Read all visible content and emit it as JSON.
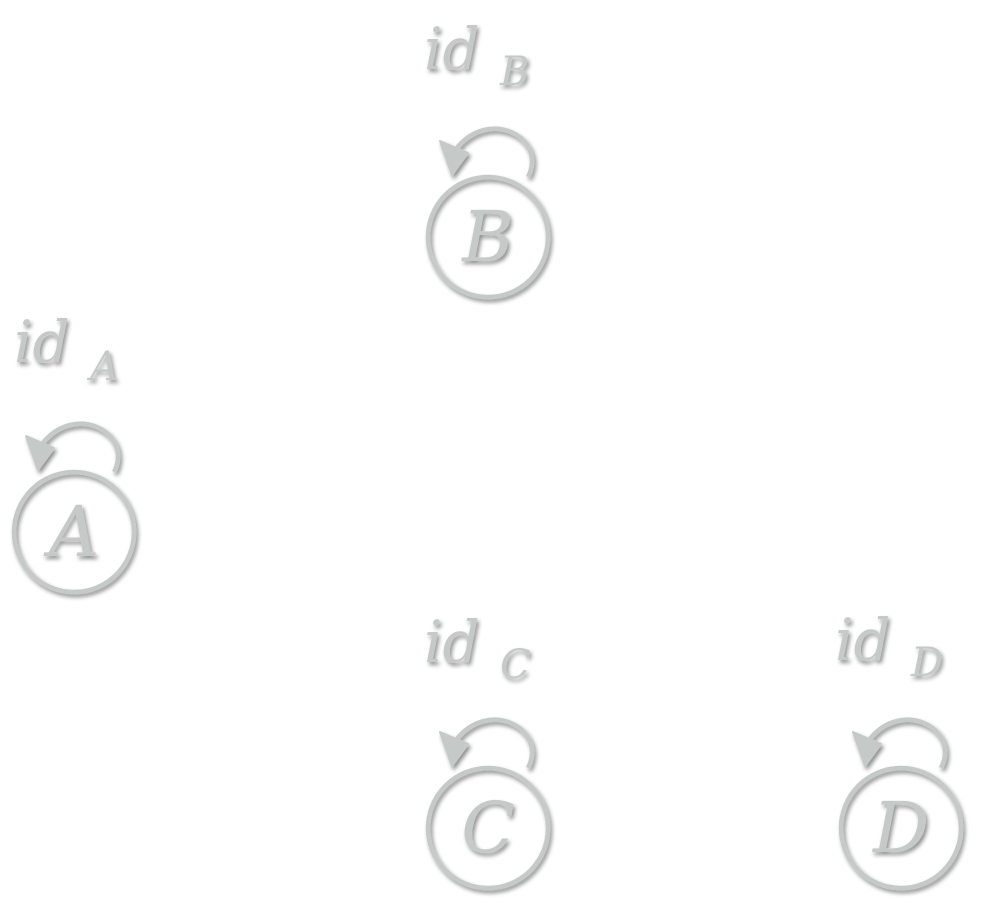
{
  "diagram": {
    "colors": {
      "stroke": "#c5cac9",
      "text": "#c5cac9",
      "shadow": "#8a8f8e"
    },
    "nodes": [
      {
        "id": "A",
        "letter": "A",
        "label_main": "id",
        "label_sub": "A"
      },
      {
        "id": "B",
        "letter": "B",
        "label_main": "id",
        "label_sub": "B"
      },
      {
        "id": "C",
        "letter": "C",
        "label_main": "id",
        "label_sub": "C"
      },
      {
        "id": "D",
        "letter": "D",
        "label_main": "id",
        "label_sub": "D"
      }
    ]
  }
}
